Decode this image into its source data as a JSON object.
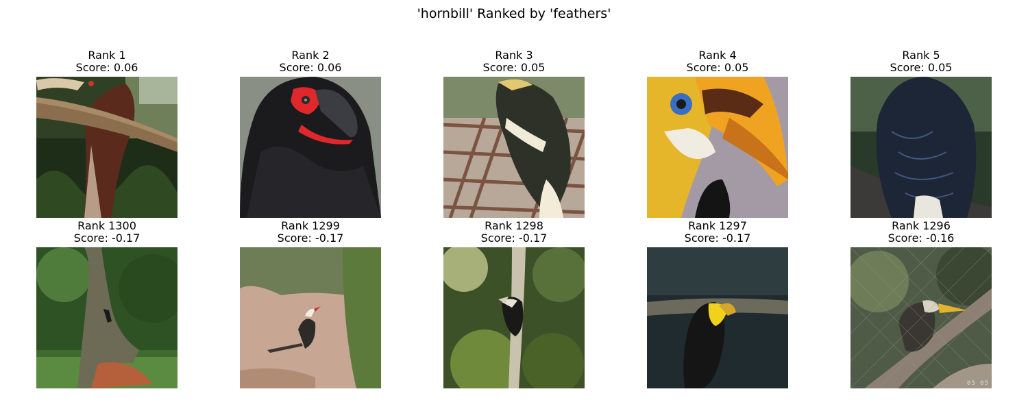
{
  "figure": {
    "title": "'hornbill' Ranked by 'feathers'"
  },
  "top_row": [
    {
      "rank_label": "Rank 1",
      "score_label": "Score: 0.06",
      "image_icon": "hornbill-on-branch-photo"
    },
    {
      "rank_label": "Rank 2",
      "score_label": "Score: 0.06",
      "image_icon": "ground-hornbill-closeup-photo"
    },
    {
      "rank_label": "Rank 3",
      "score_label": "Score: 0.05",
      "image_icon": "hornbill-back-on-fence-photo"
    },
    {
      "rank_label": "Rank 4",
      "score_label": "Score: 0.05",
      "image_icon": "wreathed-hornbill-head-photo"
    },
    {
      "rank_label": "Rank 5",
      "score_label": "Score: 0.05",
      "image_icon": "hornbill-back-feathers-photo"
    }
  ],
  "bottom_row": [
    {
      "rank_label": "Rank 1300",
      "score_label": "Score: -0.17",
      "image_icon": "hornbill-in-tree-distant-photo"
    },
    {
      "rank_label": "Rank 1299",
      "score_label": "Score: -0.17",
      "image_icon": "hornbill-on-ground-photo"
    },
    {
      "rank_label": "Rank 1298",
      "score_label": "Score: -0.17",
      "image_icon": "hornbill-in-foliage-photo"
    },
    {
      "rank_label": "Rank 1297",
      "score_label": "Score: -0.17",
      "image_icon": "hornbill-dark-enclosure-photo"
    },
    {
      "rank_label": "Rank 1296",
      "score_label": "Score: -0.16",
      "image_icon": "hornbill-behind-mesh-photo"
    }
  ],
  "camera_stamp": "05 05"
}
